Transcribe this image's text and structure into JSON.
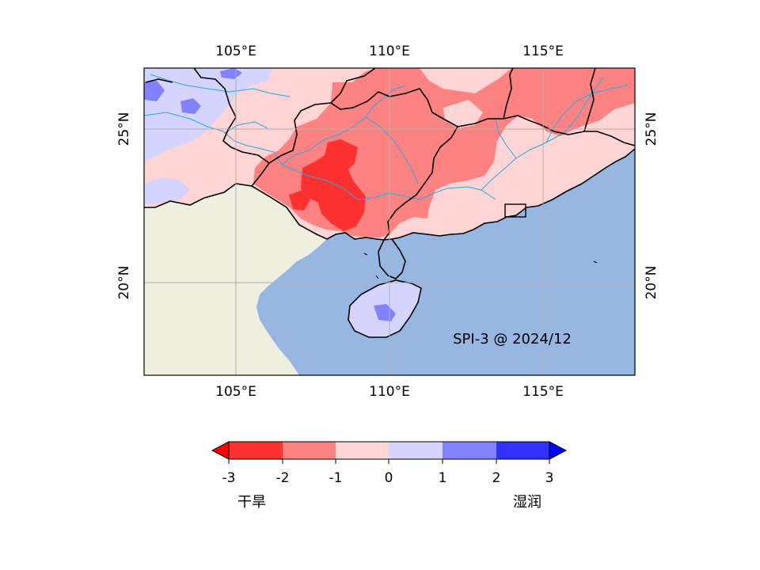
{
  "map": {
    "annotation": "SPI-3 @ 2024/12",
    "lon_ticks": [
      "105°E",
      "110°E",
      "115°E"
    ],
    "lat_ticks": [
      "25°N",
      "20°N"
    ],
    "extent": {
      "lon_min": 102,
      "lon_max": 118,
      "lat_min": 17,
      "lat_max": 27
    },
    "colors": {
      "ocean": "#97b6e1",
      "land": "#efefdf",
      "gridlines": "#b0b0b0",
      "rivers": "#25a8e6",
      "borders": "#000000"
    }
  },
  "colorbar": {
    "ticks": [
      "-3",
      "-2",
      "-1",
      "0",
      "1",
      "2",
      "3"
    ],
    "left_label": "干旱",
    "right_label": "湿润",
    "bins": [
      {
        "range": "<-3",
        "color": "#ff0000"
      },
      {
        "range": "-3~-2",
        "color": "#ff3030"
      },
      {
        "range": "-2~-1",
        "color": "#ff8282"
      },
      {
        "range": "-1~0",
        "color": "#ffd4d4"
      },
      {
        "range": "0~1",
        "color": "#d4d4ff"
      },
      {
        "range": "1~2",
        "color": "#8282ff"
      },
      {
        "range": "2~3",
        "color": "#3030ff"
      },
      {
        "range": ">3",
        "color": "#0000ff"
      }
    ]
  }
}
